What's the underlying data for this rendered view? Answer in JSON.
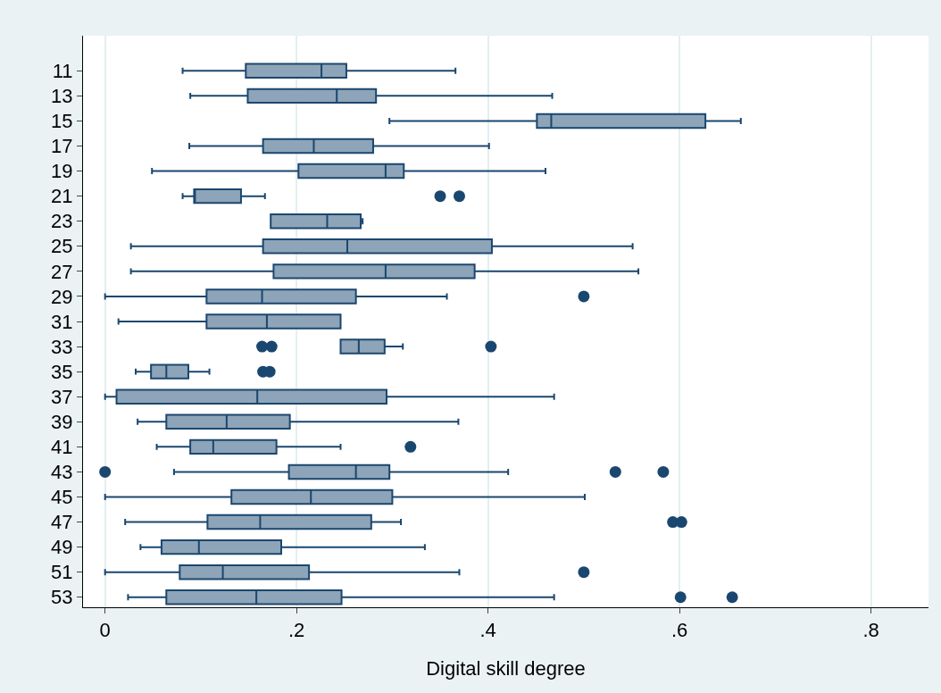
{
  "chart_data": {
    "type": "box",
    "orientation": "horizontal",
    "xlabel": "Digital skill degree",
    "categories": [
      "11",
      "13",
      "15",
      "17",
      "19",
      "21",
      "23",
      "25",
      "27",
      "29",
      "31",
      "33",
      "35",
      "37",
      "39",
      "41",
      "43",
      "45",
      "47",
      "49",
      "51",
      "53"
    ],
    "color": "#8ea4b8",
    "xlim": [
      -0.023,
      0.86
    ],
    "xticks": [
      {
        "value": 0,
        "label": "0"
      },
      {
        "value": 0.2,
        "label": ".2"
      },
      {
        "value": 0.4,
        "label": ".4"
      },
      {
        "value": 0.6,
        "label": ".6"
      },
      {
        "value": 0.8,
        "label": ".8"
      }
    ],
    "grid": "x",
    "marker": "circle",
    "boxes": [
      {
        "low": 0.081,
        "q1": 0.147,
        "median": 0.226,
        "q3": 0.252,
        "high": 0.366
      },
      {
        "low": 0.089,
        "q1": 0.149,
        "median": 0.242,
        "q3": 0.283,
        "high": 0.467
      },
      {
        "low": 0.297,
        "q1": 0.451,
        "median": 0.466,
        "q3": 0.627,
        "high": 0.664
      },
      {
        "low": 0.088,
        "q1": 0.165,
        "median": 0.218,
        "q3": 0.28,
        "high": 0.401
      },
      {
        "low": 0.049,
        "q1": 0.202,
        "median": 0.293,
        "q3": 0.312,
        "high": 0.46
      },
      {
        "low": 0.081,
        "q1": 0.093,
        "median": 0.093,
        "q3": 0.142,
        "high": 0.167,
        "outliers": [
          0.35,
          0.37
        ]
      },
      {
        "low": 0.173,
        "q1": 0.173,
        "median": 0.232,
        "q3": 0.267,
        "high": 0.269
      },
      {
        "low": 0.027,
        "q1": 0.165,
        "median": 0.253,
        "q3": 0.404,
        "high": 0.551
      },
      {
        "low": 0.027,
        "q1": 0.176,
        "median": 0.293,
        "q3": 0.386,
        "high": 0.557
      },
      {
        "low": 0,
        "q1": 0.106,
        "median": 0.164,
        "q3": 0.262,
        "high": 0.357,
        "outliers": [
          0.5
        ]
      },
      {
        "low": 0.014,
        "q1": 0.106,
        "median": 0.169,
        "q3": 0.246,
        "high": 0.246
      },
      {
        "low": 0.246,
        "q1": 0.246,
        "median": 0.265,
        "q3": 0.292,
        "high": 0.311,
        "outliers": [
          0.164,
          0.174,
          0.403
        ]
      },
      {
        "low": 0.032,
        "q1": 0.048,
        "median": 0.064,
        "q3": 0.087,
        "high": 0.109,
        "outliers": [
          0.165,
          0.172
        ]
      },
      {
        "low": 0,
        "q1": 0.012,
        "median": 0.159,
        "q3": 0.294,
        "high": 0.469
      },
      {
        "low": 0.034,
        "q1": 0.064,
        "median": 0.127,
        "q3": 0.193,
        "high": 0.369
      },
      {
        "low": 0.054,
        "q1": 0.089,
        "median": 0.113,
        "q3": 0.179,
        "high": 0.246,
        "outliers": [
          0.319
        ]
      },
      {
        "low": 0.072,
        "q1": 0.192,
        "median": 0.262,
        "q3": 0.297,
        "high": 0.421,
        "outliers": [
          0,
          0.533,
          0.583
        ]
      },
      {
        "low": 0,
        "q1": 0.132,
        "median": 0.215,
        "q3": 0.3,
        "high": 0.501
      },
      {
        "low": 0.021,
        "q1": 0.107,
        "median": 0.162,
        "q3": 0.278,
        "high": 0.309,
        "outliers": [
          0.593,
          0.602
        ]
      },
      {
        "low": 0.037,
        "q1": 0.059,
        "median": 0.098,
        "q3": 0.184,
        "high": 0.334
      },
      {
        "low": 0,
        "q1": 0.078,
        "median": 0.123,
        "q3": 0.213,
        "high": 0.37,
        "outliers": [
          0.5
        ]
      },
      {
        "low": 0.024,
        "q1": 0.064,
        "median": 0.158,
        "q3": 0.247,
        "high": 0.469,
        "outliers": [
          0.601,
          0.655
        ]
      }
    ]
  }
}
